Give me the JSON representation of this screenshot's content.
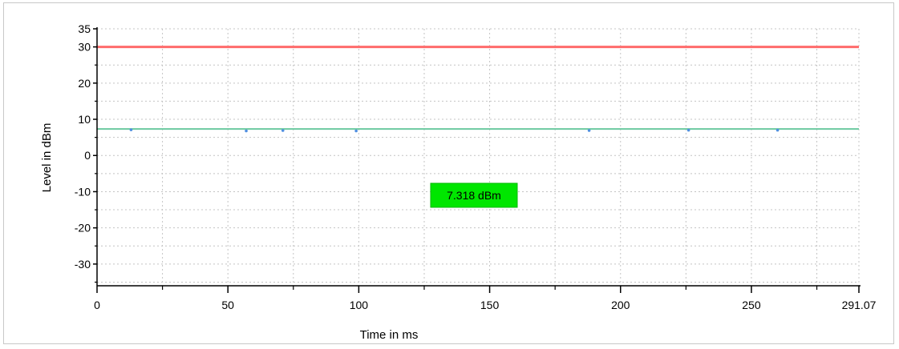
{
  "chart_data": {
    "type": "line",
    "xlabel": "Time in ms",
    "ylabel": "Level in dBm",
    "xlim": [
      0,
      291.07
    ],
    "ylim": [
      -36,
      35
    ],
    "x_ticks": [
      0,
      50,
      100,
      150,
      200,
      250,
      291.07
    ],
    "x_tick_labels": [
      "0",
      "50",
      "100",
      "150",
      "200",
      "250",
      "291.07"
    ],
    "x_minor_ticks": [
      25,
      75,
      125,
      175,
      225,
      275
    ],
    "y_ticks": [
      35,
      30,
      20,
      10,
      0,
      -10,
      -20,
      -30
    ],
    "y_tick_labels": [
      "35",
      "30",
      "20",
      "10",
      "0",
      "-10",
      "-20",
      "-30"
    ],
    "y_minor_ticks": [
      25,
      15,
      5,
      -5,
      -15,
      -25,
      -35
    ],
    "grid": true,
    "series": [
      {
        "role": "limit",
        "color": "#ff6b6b",
        "x": [
          0,
          291.07
        ],
        "y": [
          30,
          30
        ]
      },
      {
        "role": "level",
        "color": "#6cc9a0",
        "x": [
          0,
          13,
          57,
          71,
          99,
          188,
          226,
          260,
          291.07
        ],
        "y": [
          7.318,
          7.318,
          7.318,
          7.318,
          7.318,
          7.318,
          7.318,
          7.318,
          7.318
        ]
      }
    ],
    "markers": {
      "color": "#4f8fe0",
      "x": [
        13,
        57,
        71,
        99,
        188,
        226,
        260
      ],
      "y": [
        7.1,
        6.8,
        6.9,
        6.8,
        6.9,
        7.0,
        7.0
      ]
    },
    "annotation": {
      "text": "7.318 dBm",
      "x": 144,
      "y": -11,
      "background": "#00e600"
    }
  }
}
